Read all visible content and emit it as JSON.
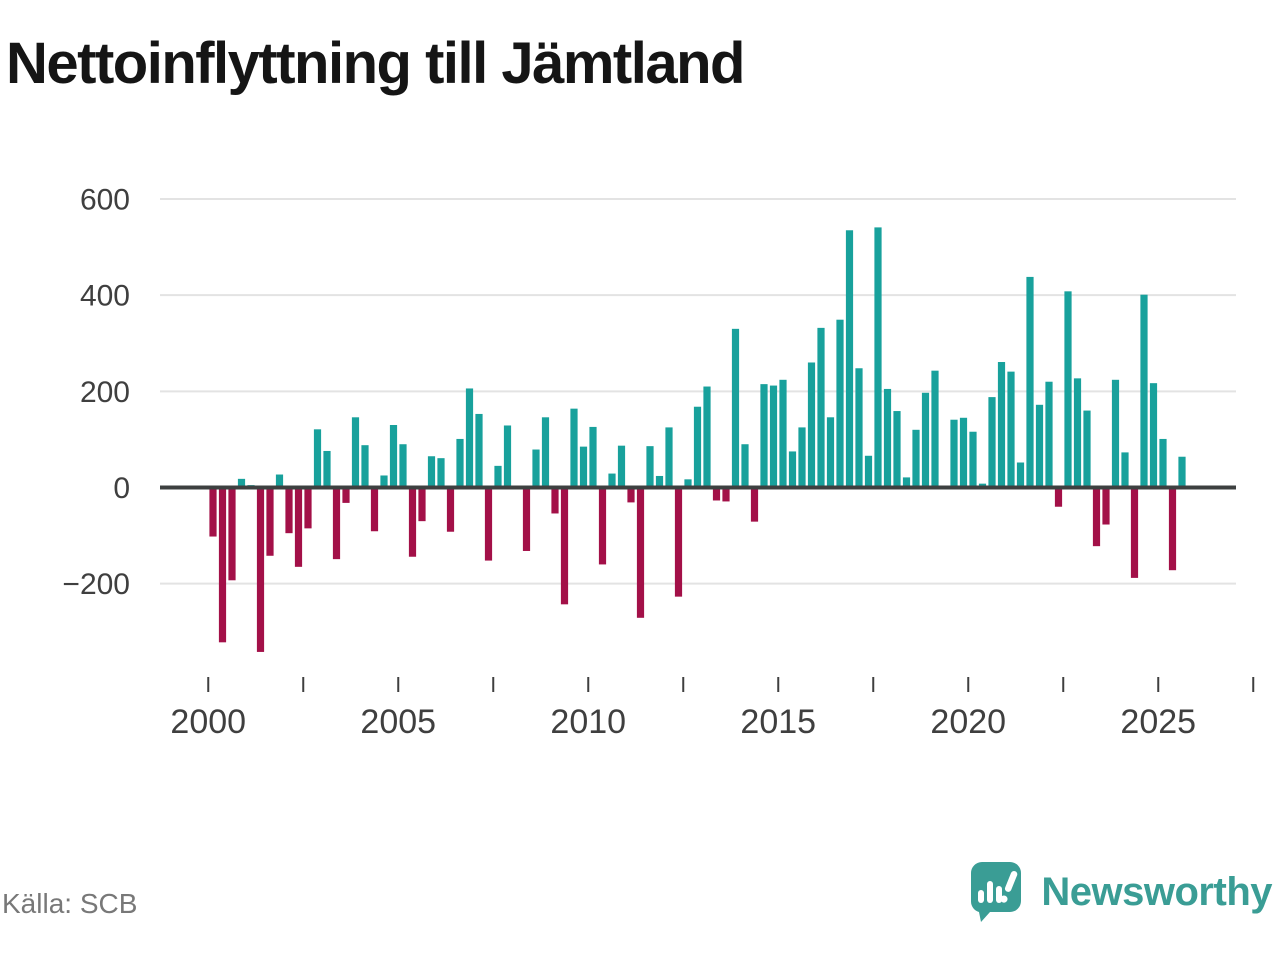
{
  "chart_data": {
    "type": "bar",
    "title": "Nettoinflyttning till Jämtland",
    "source_label": "Källa: SCB",
    "start_period": "2000Q1",
    "frequency": "quarterly",
    "values": [
      -102,
      -322,
      -193,
      18,
      5,
      -342,
      -142,
      27,
      -95,
      -165,
      -85,
      121,
      76,
      -149,
      -32,
      146,
      88,
      -91,
      25,
      130,
      90,
      -144,
      -70,
      65,
      61,
      -92,
      101,
      206,
      153,
      -152,
      45,
      129,
      0,
      -132,
      79,
      146,
      -54,
      -243,
      164,
      85,
      126,
      -160,
      29,
      87,
      -31,
      -271,
      86,
      24,
      125,
      -227,
      17,
      168,
      210,
      -27,
      -29,
      330,
      90,
      -71,
      215,
      212,
      224,
      75,
      125,
      260,
      332,
      146,
      349,
      535,
      248,
      66,
      541,
      205,
      159,
      21,
      120,
      197,
      243,
      0,
      141,
      145,
      116,
      8,
      188,
      261,
      241,
      52,
      438,
      172,
      220,
      -40,
      408,
      227,
      160,
      -122,
      -77,
      224,
      73,
      -188,
      401,
      217,
      101,
      -172,
      64
    ],
    "y_ticks": [
      600,
      400,
      200,
      0,
      -200
    ],
    "x_tick_years": [
      2000,
      2005,
      2010,
      2015,
      2020,
      2025
    ],
    "ylim": [
      -360,
      620
    ],
    "grid": true,
    "legend": "none",
    "colors": {
      "positive": "#18a19c",
      "negative": "#a31048",
      "grid": "#e3e3e3",
      "zero_line": "#3d4040",
      "axis_text": "#3f3f3f",
      "title_text": "#151515",
      "source_text": "#787878",
      "logo": "#3a9d95"
    }
  },
  "logo": {
    "text": "Newsworthy",
    "icon": "speech-bubble-bar-chart-icon"
  }
}
